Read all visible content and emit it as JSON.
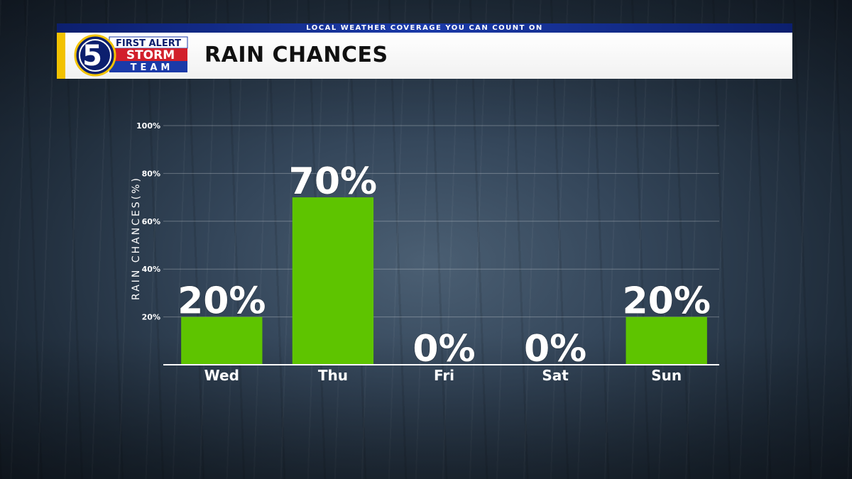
{
  "header": {
    "tagline": "LOCAL WEATHER COVERAGE YOU CAN COUNT ON",
    "title": "RAIN CHANCES"
  },
  "logo": {
    "number": "5",
    "line1": "FIRST ALERT",
    "line2": "STORM",
    "line3": "TEAM"
  },
  "colors": {
    "bar": "#5ec400",
    "header_blue": "#1b3aa8",
    "header_yellow": "#f2c200",
    "logo_red": "#d21f2b"
  },
  "chart_data": {
    "type": "bar",
    "title": "RAIN CHANCES",
    "xlabel": "",
    "ylabel": "RAIN CHANCES(%)",
    "categories": [
      "Wed",
      "Thu",
      "Fri",
      "Sat",
      "Sun"
    ],
    "values": [
      20,
      70,
      0,
      0,
      20
    ],
    "data_labels": [
      "20%",
      "70%",
      "0%",
      "0%",
      "20%"
    ],
    "ylim": [
      0,
      100
    ],
    "yticks": [
      20,
      40,
      60,
      80,
      100
    ],
    "ytick_labels": [
      "20%",
      "40%",
      "60%",
      "80%",
      "100%"
    ],
    "grid": true,
    "legend": "none"
  }
}
